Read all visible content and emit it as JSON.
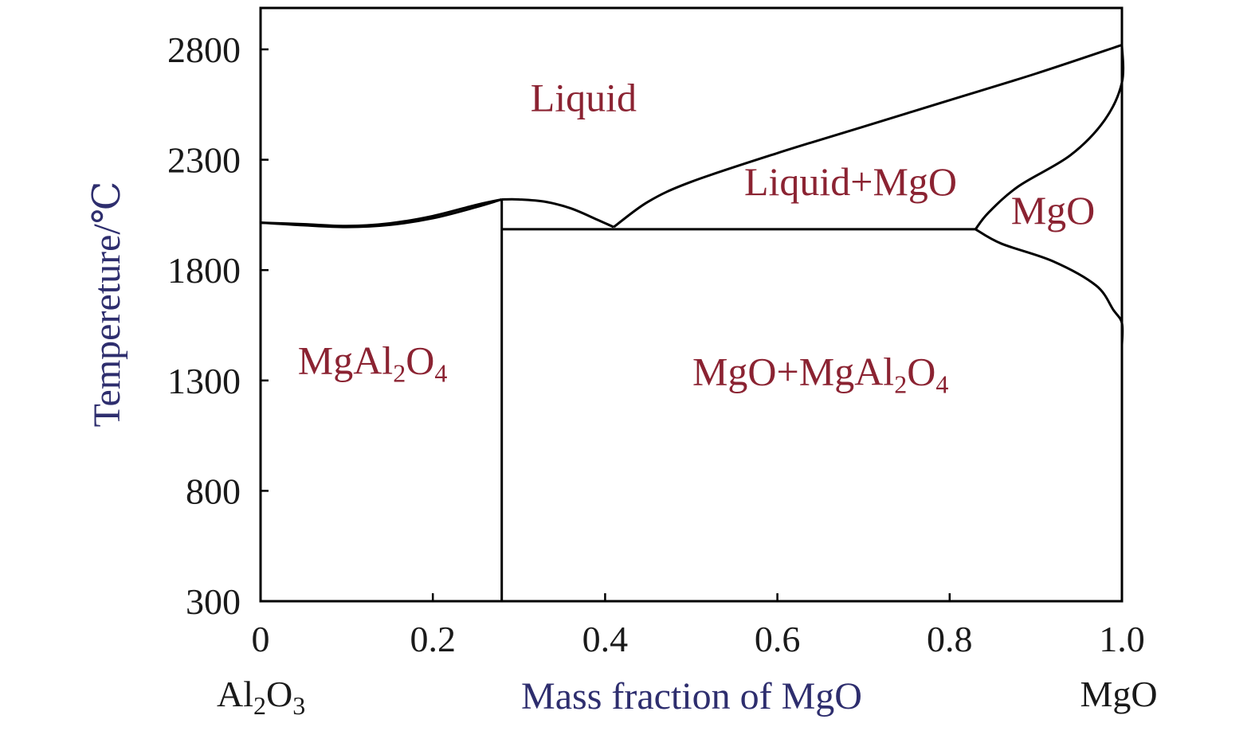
{
  "chart_data": {
    "type": "line",
    "title": "",
    "xlabel": "Mass fraction of MgO",
    "ylabel": "Tempereture/℃",
    "xlim": [
      0,
      1.0
    ],
    "ylim": [
      300,
      3000
    ],
    "x_ticks": [
      {
        "value": 0,
        "label": "0"
      },
      {
        "value": 0.2,
        "label": "0.2"
      },
      {
        "value": 0.4,
        "label": "0.4"
      },
      {
        "value": 0.6,
        "label": "0.6"
      },
      {
        "value": 0.8,
        "label": "0.8"
      },
      {
        "value": 1.0,
        "label": "1.0"
      }
    ],
    "y_ticks": [
      {
        "value": 300,
        "label": "300"
      },
      {
        "value": 800,
        "label": "800"
      },
      {
        "value": 1300,
        "label": "1300"
      },
      {
        "value": 1800,
        "label": "1800"
      },
      {
        "value": 2300,
        "label": "2300"
      },
      {
        "value": 2800,
        "label": "2800"
      }
    ],
    "end_labels": {
      "left": {
        "base": "Al",
        "sub1": "2",
        "mid": "O",
        "sub2": "3"
      },
      "right": "MgO"
    },
    "colors": {
      "axis_title": "#2e2e6e",
      "region_label": "#8b2332",
      "line": "#000000"
    },
    "grid": false,
    "series": [
      {
        "values": [
          [
            0,
            2015
          ],
          [
            0.05,
            2003
          ],
          [
            0.1,
            1995
          ],
          [
            0.15,
            2005
          ],
          [
            0.2,
            2035
          ],
          [
            0.25,
            2085
          ],
          [
            0.28,
            2120
          ]
        ]
      },
      {
        "values": [
          [
            0,
            2015
          ],
          [
            0.05,
            2008
          ],
          [
            0.1,
            2000
          ],
          [
            0.15,
            2012
          ],
          [
            0.2,
            2045
          ],
          [
            0.25,
            2095
          ],
          [
            0.28,
            2120
          ]
        ]
      },
      {
        "values": [
          [
            0.28,
            2120
          ],
          [
            0.3,
            2120
          ],
          [
            0.33,
            2110
          ],
          [
            0.36,
            2080
          ],
          [
            0.39,
            2030
          ],
          [
            0.41,
            1995
          ]
        ]
      },
      {
        "values": [
          [
            0.41,
            1995
          ],
          [
            0.45,
            2110
          ],
          [
            0.5,
            2200
          ],
          [
            0.6,
            2330
          ],
          [
            0.7,
            2450
          ],
          [
            0.8,
            2570
          ],
          [
            0.9,
            2690
          ],
          [
            1.0,
            2820
          ]
        ]
      },
      {
        "values": [
          [
            0.28,
            1985
          ],
          [
            0.83,
            1985
          ]
        ]
      },
      {
        "values": [
          [
            0.28,
            300
          ],
          [
            0.28,
            2120
          ]
        ]
      },
      {
        "values": [
          [
            0.83,
            1985
          ],
          [
            0.845,
            2060
          ],
          [
            0.88,
            2180
          ],
          [
            0.94,
            2320
          ],
          [
            0.98,
            2480
          ],
          [
            1.0,
            2650
          ],
          [
            1.0,
            2820
          ]
        ]
      },
      {
        "values": [
          [
            0.83,
            1985
          ],
          [
            0.86,
            1920
          ],
          [
            0.92,
            1840
          ],
          [
            0.97,
            1730
          ],
          [
            0.99,
            1620
          ],
          [
            1.0,
            1560
          ],
          [
            1.0,
            1460
          ]
        ]
      }
    ],
    "annotations": [
      {
        "label": "Liquid",
        "x": 0.375,
        "y": 2520
      },
      {
        "label": "Liquid+MgO",
        "x": 0.685,
        "y": 2140
      },
      {
        "label": "MgO",
        "x": 0.92,
        "y": 2010
      },
      {
        "label": "MgAl",
        "sub1": "2",
        "mid": "O",
        "sub2": "4",
        "x": 0.13,
        "y": 1330
      },
      {
        "label": "MgO+MgAl",
        "sub1": "2",
        "mid": "O",
        "sub2": "4",
        "x": 0.65,
        "y": 1280
      }
    ]
  }
}
